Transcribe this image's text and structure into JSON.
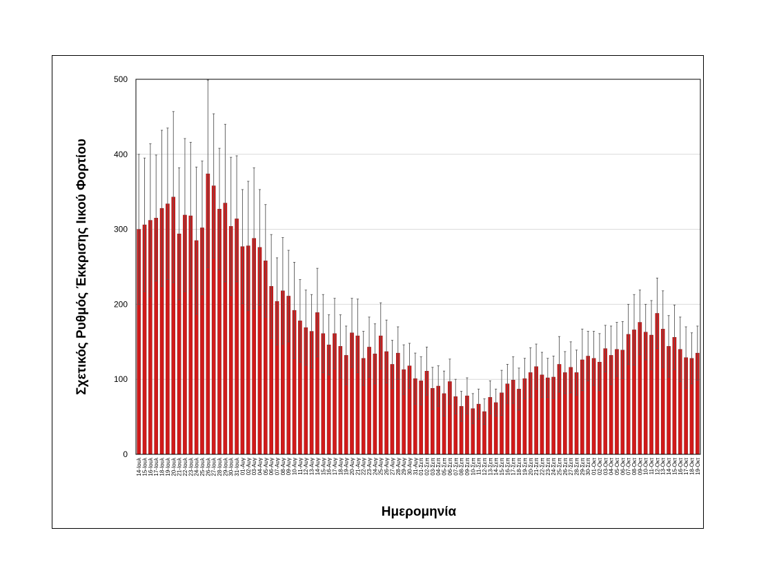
{
  "chart_data": {
    "type": "bar",
    "title": "",
    "xlabel": "Ημερομηνία",
    "ylabel": "Σχετικός Ρυθμός Έκκρισης Ιικού Φορτίου",
    "ylim": [
      0,
      500
    ],
    "yticks": [
      0,
      100,
      200,
      300,
      400,
      500
    ],
    "grid": true,
    "legend": "none",
    "colors": {
      "bar": "#d11a1a",
      "bar_edge": "#7a0a0a",
      "error": "#555555",
      "grid": "#d9d9d9"
    },
    "categories": [
      "14-Ιουλ",
      "15-Ιουλ",
      "16-Ιουλ",
      "17-Ιουλ",
      "18-Ιουλ",
      "19-Ιουλ",
      "20-Ιουλ",
      "21-Ιουλ",
      "22-Ιουλ",
      "23-Ιουλ",
      "24-Ιουλ",
      "25-Ιουλ",
      "26-Ιουλ",
      "27-Ιουλ",
      "28-Ιουλ",
      "29-Ιουλ",
      "30-Ιουλ",
      "31-Ιουλ",
      "01-Αυγ",
      "02-Αυγ",
      "03-Αυγ",
      "04-Αυγ",
      "05-Αυγ",
      "06-Αυγ",
      "07-Αυγ",
      "08-Αυγ",
      "09-Αυγ",
      "10-Αυγ",
      "11-Αυγ",
      "12-Αυγ",
      "13-Αυγ",
      "14-Αυγ",
      "15-Αυγ",
      "16-Αυγ",
      "17-Αυγ",
      "18-Αυγ",
      "19-Αυγ",
      "20-Αυγ",
      "21-Αυγ",
      "22-Αυγ",
      "23-Αυγ",
      "24-Αυγ",
      "25-Αυγ",
      "26-Αυγ",
      "27-Αυγ",
      "28-Αυγ",
      "29-Αυγ",
      "30-Αυγ",
      "31-Αυγ",
      "01-Σεπ",
      "02-Σεπ",
      "03-Σεπ",
      "04-Σεπ",
      "05-Σεπ",
      "06-Σεπ",
      "07-Σεπ",
      "08-Σεπ",
      "09-Σεπ",
      "10-Σεπ",
      "11-Σεπ",
      "12-Σεπ",
      "13-Σεπ",
      "14-Σεπ",
      "15-Σεπ",
      "16-Σεπ",
      "17-Σεπ",
      "18-Σεπ",
      "19-Σεπ",
      "20-Σεπ",
      "21-Σεπ",
      "22-Σεπ",
      "23-Σεπ",
      "24-Σεπ",
      "25-Σεπ",
      "26-Σεπ",
      "27-Σεπ",
      "28-Σεπ",
      "29-Σεπ",
      "30-Σεπ",
      "01-Οκτ",
      "02-Οκτ",
      "03-Οκτ",
      "04-Οκτ",
      "05-Οκτ",
      "06-Οκτ",
      "07-Οκτ",
      "08-Οκτ",
      "09-Οκτ",
      "10-Οκτ",
      "11-Οκτ",
      "12-Οκτ",
      "13-Οκτ",
      "14-Οκτ",
      "15-Οκτ",
      "16-Οκτ",
      "17-Οκτ",
      "18-Οκτ",
      "19-Οκτ"
    ],
    "series": [
      {
        "values": [
          300,
          306,
          312,
          315,
          328,
          334,
          343,
          294,
          319,
          318,
          285,
          302,
          374,
          358,
          327,
          335,
          304,
          314,
          277,
          278,
          288,
          276,
          258,
          224,
          204,
          218,
          211,
          192,
          178,
          169,
          164,
          189,
          161,
          146,
          161,
          144,
          132,
          162,
          158,
          128,
          143,
          134,
          158,
          137,
          120,
          135,
          113,
          118,
          101,
          98,
          111,
          88,
          91,
          81,
          97,
          77,
          64,
          78,
          61,
          67,
          57,
          76,
          69,
          82,
          94,
          99,
          87,
          101,
          109,
          117,
          106,
          102,
          103,
          120,
          109,
          116,
          109,
          126,
          131,
          128,
          123,
          141,
          132,
          140,
          139,
          160,
          166,
          176,
          163,
          159,
          188,
          167,
          144,
          156,
          140,
          129,
          128,
          135
        ],
        "error": [
          100,
          89,
          102,
          84,
          104,
          101,
          114,
          88,
          102,
          98,
          98,
          89,
          125,
          96,
          81,
          105,
          92,
          84,
          76,
          86,
          94,
          77,
          75,
          69,
          58,
          71,
          61,
          64,
          55,
          50,
          49,
          59,
          52,
          40,
          47,
          42,
          39,
          46,
          49,
          36,
          40,
          40,
          44,
          42,
          32,
          35,
          33,
          30,
          34,
          32,
          32,
          28,
          27,
          30,
          30,
          23,
          20,
          24,
          20,
          20,
          17,
          22,
          18,
          30,
          26,
          31,
          28,
          27,
          33,
          30,
          30,
          26,
          28,
          37,
          28,
          34,
          30,
          41,
          33,
          36,
          38,
          31,
          39,
          36,
          38,
          40,
          47,
          43,
          37,
          46,
          47,
          51,
          41,
          43,
          43,
          41,
          34,
          36
        ]
      }
    ]
  }
}
